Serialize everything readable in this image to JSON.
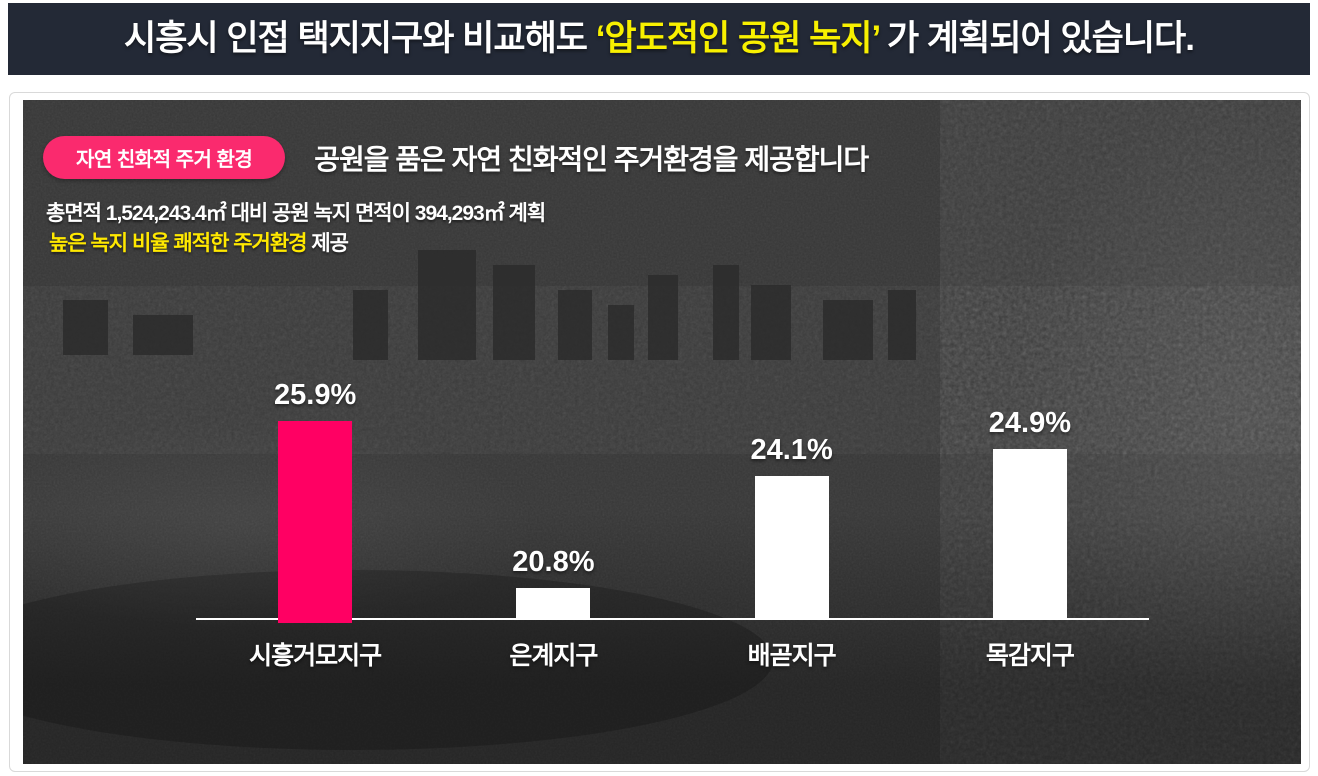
{
  "header": {
    "prefix": "시흥시 인접 택지지구와 비교해도 ",
    "highlight": "‘압도적인 공원 녹지’",
    "suffix": " 가 계획되어 있습니다."
  },
  "section": {
    "badge": "자연 친화적 주거 환경",
    "heading": "공원을 품은 자연 친화적인 주거환경을 제공합니다",
    "note_line1": "총면적 1,524,243.4㎡ 대비 공원 녹지 면적이 394,293㎡ 계획",
    "note_line2_highlight": "높은 녹지 비율 쾌적한 주거환경",
    "note_line2_rest": " 제공"
  },
  "colors": {
    "banner_bg": "#232936",
    "banner_text": "#ffffff",
    "banner_highlight": "#f8f000",
    "canvas_bg": "#373737",
    "badge_bg": "#fa2a6e",
    "note_highlight": "#ffe800",
    "card_border": "#d9d9d9"
  },
  "chart_data": {
    "type": "bar",
    "categories": [
      "시흥거모지구",
      "은계지구",
      "배곧지구",
      "목감지구"
    ],
    "values": [
      25.9,
      20.8,
      24.1,
      24.9
    ],
    "value_labels": [
      "25.9%",
      "20.8%",
      "24.1%",
      "24.9%"
    ],
    "unit": "%",
    "title": "공원을 품은 자연 친화적인 주거환경을 제공합니다",
    "xlabel": "",
    "ylabel": "",
    "ylim": [
      19.9,
      28.5
    ],
    "grid": false,
    "legend": false,
    "highlight_index": 0,
    "highlight_color": "#ff0063",
    "bar_color": "#ffffff",
    "axis_color": "#ffffff"
  }
}
